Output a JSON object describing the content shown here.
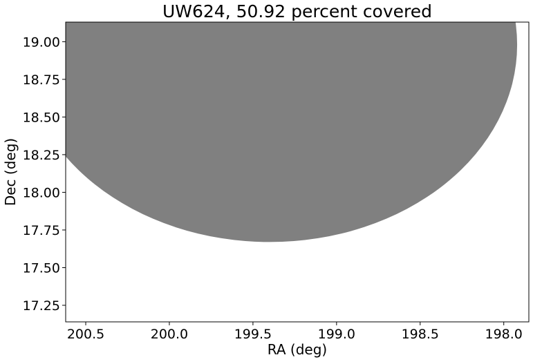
{
  "chart_data": {
    "type": "coverage-map",
    "title": "UW624, 50.92 percent covered",
    "xlabel": "RA (deg)",
    "ylabel": "Dec (deg)",
    "xlim": [
      200.62,
      197.85
    ],
    "ylim": [
      17.14,
      19.13
    ],
    "x_inverted": true,
    "xticks": [
      200.5,
      200.0,
      199.5,
      199.0,
      198.5,
      198.0
    ],
    "xtick_labels": [
      "200.5",
      "200.0",
      "199.5",
      "199.0",
      "198.5",
      "198.0"
    ],
    "yticks": [
      17.25,
      17.5,
      17.75,
      18.0,
      18.25,
      18.5,
      18.75,
      19.0
    ],
    "ytick_labels": [
      "17.25",
      "17.50",
      "17.75",
      "18.00",
      "18.25",
      "18.50",
      "18.75",
      "19.00"
    ],
    "grid": false,
    "coverage_region": {
      "shape": "circle",
      "center_ra": 199.4,
      "center_dec": 18.98,
      "ra_radius": 1.48,
      "dec_radius": 1.31,
      "color": "#808080"
    }
  }
}
